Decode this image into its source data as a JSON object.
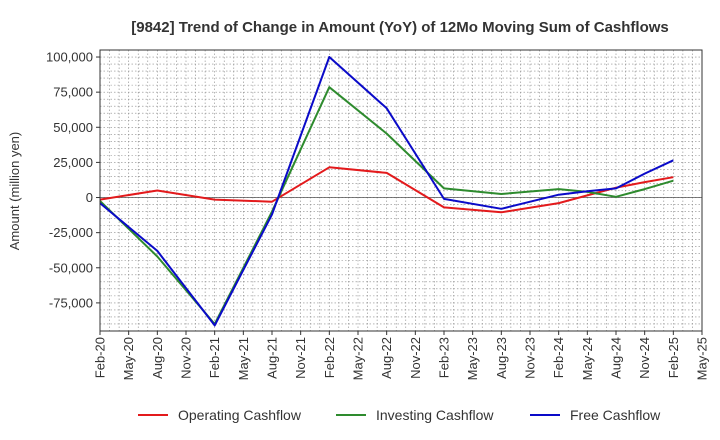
{
  "chart_data": {
    "type": "line",
    "title": "[9842]  Trend of Change in Amount (YoY) of 12Mo Moving Sum of Cashflows",
    "xlabel": "",
    "ylabel": "Amount (million yen)",
    "ylim": [
      -95000,
      105000
    ],
    "yticks": [
      100000,
      75000,
      50000,
      25000,
      0,
      -25000,
      -50000,
      -75000
    ],
    "ytick_labels": [
      "100,000",
      "75,000",
      "50,000",
      "25,000",
      "0",
      "-25,000",
      "-50,000",
      "-75,000"
    ],
    "x_tick_labels": [
      "Feb-20",
      "May-20",
      "Aug-20",
      "Nov-20",
      "Feb-21",
      "May-21",
      "Aug-21",
      "Nov-21",
      "Feb-22",
      "May-22",
      "Aug-22",
      "Nov-22",
      "Feb-23",
      "May-23",
      "Aug-23",
      "Nov-23",
      "Feb-24",
      "May-24",
      "Aug-24",
      "Nov-24",
      "Feb-25",
      "May-25"
    ],
    "x_index": [
      0,
      2,
      4,
      6,
      8,
      10,
      12,
      14,
      16,
      17,
      18,
      19,
      20
    ],
    "x_labels": [
      "Feb-20",
      "Aug-20",
      "Feb-21",
      "Aug-21",
      "Feb-22",
      "Aug-22",
      "Feb-23",
      "Aug-23",
      "Feb-24",
      "May-24",
      "Aug-24",
      "Nov-24",
      "Feb-25"
    ],
    "series": [
      {
        "name": "Operating Cashflow",
        "color": "#e31a1c",
        "values": [
          -1500,
          5000,
          -1500,
          -3000,
          21500,
          17500,
          -7000,
          -10500,
          -4000,
          1500,
          7000,
          11000,
          14500
        ]
      },
      {
        "name": "Investing Cashflow",
        "color": "#2e8b2e",
        "values": [
          -2500,
          -42000,
          -90000,
          -10000,
          78500,
          45500,
          6500,
          2500,
          6000,
          4000,
          500,
          6000,
          12000
        ]
      },
      {
        "name": "Free Cashflow",
        "color": "#0a0ac8",
        "values": [
          -4000,
          -38000,
          -91000,
          -12000,
          100000,
          63500,
          -1000,
          -8000,
          2000,
          4500,
          6500,
          17000,
          26500
        ]
      }
    ],
    "grid": true,
    "legend_position": "bottom"
  }
}
